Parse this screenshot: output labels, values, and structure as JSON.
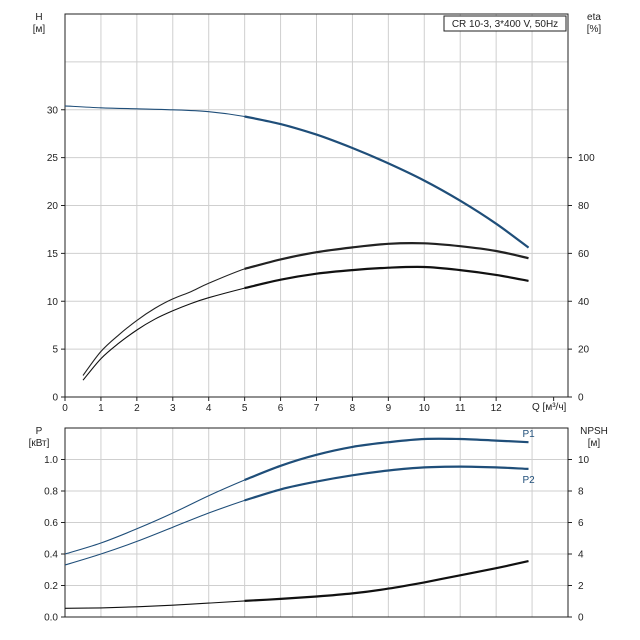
{
  "chart_data": [
    {
      "type": "line",
      "title": "CR 10-3, 3*400 V, 50Hz",
      "xlabel": "Q [м³/ч]",
      "ylabel": "H\n[м]",
      "y2label": "eta\n[%]",
      "xlim": [
        0,
        14
      ],
      "ylim": [
        0,
        40
      ],
      "y2lim": [
        0,
        160
      ],
      "x_ticks": [
        0,
        1,
        2,
        3,
        4,
        5,
        6,
        7,
        8,
        9,
        10,
        11,
        12
      ],
      "y_ticks": [
        0,
        5,
        10,
        15,
        20,
        25,
        30
      ],
      "y2_ticks": [
        0,
        20,
        40,
        60,
        80,
        100
      ],
      "grid": true,
      "series": [
        {
          "axis": "left",
          "color": "#1f4e79",
          "x": [
            0,
            1,
            2,
            3,
            4,
            5,
            6,
            7,
            8,
            9,
            10,
            11,
            12,
            12.9
          ],
          "values": [
            30.4,
            30.2,
            30.1,
            30.0,
            29.8,
            29.3,
            28.5,
            27.4,
            26.0,
            24.4,
            22.6,
            20.5,
            18.1,
            15.6
          ]
        },
        {
          "axis": "right",
          "color": "#222222",
          "x": [
            0.5,
            1,
            1.5,
            2,
            2.5,
            3,
            3.5,
            4,
            5,
            6,
            7,
            8,
            9,
            10,
            11,
            12,
            12.9
          ],
          "values": [
            9,
            19,
            26,
            32,
            37,
            41,
            44,
            47.5,
            53.5,
            57.5,
            60.5,
            62.5,
            64,
            64.2,
            63,
            61,
            58
          ]
        },
        {
          "axis": "right",
          "color": "#111111",
          "x": [
            0.5,
            1,
            1.5,
            2,
            2.5,
            3,
            3.5,
            4,
            5,
            6,
            7,
            8,
            9,
            10,
            11,
            12,
            12.9
          ],
          "values": [
            7,
            16,
            22.5,
            28,
            32.5,
            36,
            39,
            41.5,
            45.5,
            49,
            51.5,
            53,
            54,
            54.3,
            53,
            51,
            48.5
          ]
        }
      ]
    },
    {
      "type": "line",
      "xlabel": "",
      "ylabel": "P\n[кВт]",
      "y2label": "NPSH\n[м]",
      "xlim": [
        0,
        14
      ],
      "ylim": [
        0,
        1.2
      ],
      "y2lim": [
        0,
        12
      ],
      "y_ticks": [
        0.0,
        0.2,
        0.4,
        0.6,
        0.8,
        1.0
      ],
      "y2_ticks": [
        0,
        2,
        4,
        6,
        8,
        10
      ],
      "grid": true,
      "series": [
        {
          "name": "P1",
          "axis": "left",
          "color": "#1f4e79",
          "x": [
            0,
            1,
            2,
            3,
            4,
            5,
            6,
            7,
            8,
            9,
            10,
            11,
            12,
            12.9
          ],
          "values": [
            0.4,
            0.47,
            0.56,
            0.66,
            0.77,
            0.87,
            0.96,
            1.03,
            1.08,
            1.11,
            1.13,
            1.13,
            1.12,
            1.11
          ]
        },
        {
          "name": "P2",
          "axis": "left",
          "color": "#1f4e79",
          "x": [
            0,
            1,
            2,
            3,
            4,
            5,
            6,
            7,
            8,
            9,
            10,
            11,
            12,
            12.9
          ],
          "values": [
            0.33,
            0.4,
            0.48,
            0.57,
            0.66,
            0.74,
            0.81,
            0.86,
            0.9,
            0.93,
            0.95,
            0.955,
            0.95,
            0.94
          ]
        },
        {
          "axis": "right",
          "color": "#111111",
          "x": [
            0,
            1,
            2,
            3,
            4,
            5,
            6,
            7,
            8,
            9,
            10,
            11,
            12,
            12.9
          ],
          "values": [
            0.55,
            0.58,
            0.65,
            0.75,
            0.88,
            1.02,
            1.15,
            1.3,
            1.5,
            1.8,
            2.2,
            2.65,
            3.1,
            3.55
          ]
        }
      ]
    }
  ]
}
